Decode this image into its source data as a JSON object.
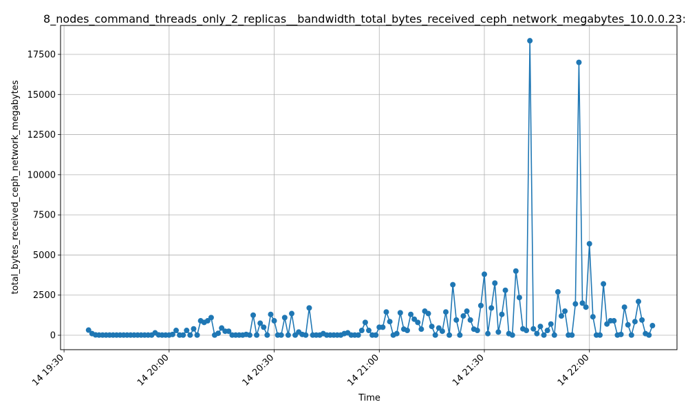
{
  "chart_data": {
    "type": "line",
    "title": "8_nodes_command_threads_only_2_replicas__bandwidth_total_bytes_received_ceph_network_megabytes_10.0.0.23:",
    "xlabel": "Time",
    "ylabel": "total_bytes_received_ceph_network_megabytes",
    "x_tick_labels": [
      "14 19:30",
      "14 20:00",
      "14 20:30",
      "14 21:00",
      "14 21:30",
      "14 22:00"
    ],
    "x_ticks_minutes": [
      0,
      30,
      60,
      90,
      120,
      150
    ],
    "xlim_minutes": [
      -1,
      175
    ],
    "y_tick_labels": [
      "0",
      "2500",
      "5000",
      "7500",
      "10000",
      "12500",
      "15000",
      "17500"
    ],
    "y_ticks": [
      0,
      2500,
      5000,
      7500,
      10000,
      12500,
      15000,
      17500
    ],
    "ylim": [
      -900,
      19300
    ],
    "grid": true,
    "color": "#1f77b4",
    "marker": "circle",
    "series": [
      {
        "x_start_minutes": 7,
        "x_step_minutes": 1,
        "values": [
          320,
          100,
          20,
          10,
          10,
          10,
          10,
          10,
          10,
          10,
          10,
          10,
          10,
          10,
          10,
          10,
          10,
          10,
          10,
          150,
          20,
          10,
          10,
          10,
          50,
          300,
          10,
          10,
          300,
          10,
          400,
          10,
          900,
          800,
          900,
          1100,
          10,
          120,
          450,
          250,
          250,
          10,
          10,
          10,
          10,
          50,
          10,
          1250,
          10,
          750,
          500,
          10,
          1300,
          900,
          10,
          10,
          1100,
          10,
          1350,
          10,
          200,
          50,
          10,
          1700,
          10,
          10,
          10,
          100,
          10,
          10,
          10,
          10,
          10,
          100,
          150,
          10,
          10,
          10,
          300,
          800,
          300,
          10,
          10,
          500,
          500,
          1450,
          850,
          10,
          100,
          1400,
          380,
          300,
          1300,
          1000,
          800,
          380,
          1500,
          1350,
          550,
          10,
          450,
          250,
          1450,
          10,
          3150,
          950,
          10,
          1200,
          1500,
          950,
          380,
          300,
          1850,
          3800,
          100,
          1700,
          3250,
          200,
          1300,
          2800,
          100,
          10,
          4000,
          2350,
          400,
          300,
          18350,
          400,
          100,
          550,
          10,
          300,
          700,
          10,
          2700,
          1200,
          1500,
          10,
          10,
          1950,
          17000,
          2000,
          1750,
          5700,
          1150,
          10,
          10,
          3200,
          700,
          900,
          900,
          10,
          50,
          1750,
          650,
          10,
          850,
          2100,
          950,
          100,
          10,
          600
        ]
      }
    ]
  }
}
